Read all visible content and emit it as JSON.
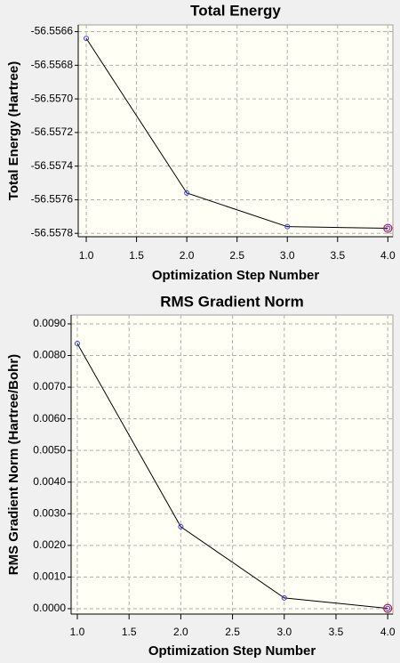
{
  "chart_data": [
    {
      "type": "line",
      "title": "Total Energy",
      "x_label": "Optimization Step Number",
      "y_label": "Total Energy (Hartree)",
      "x": [
        1,
        2,
        3,
        4
      ],
      "values": [
        -56.55664,
        -56.55756,
        -56.55776,
        -56.55777
      ],
      "color": "#000000",
      "marker_color": "#3a3ad0",
      "xlim": [
        0.92,
        4.05
      ],
      "ylim": [
        -56.55782,
        -56.55656
      ],
      "xticks": [
        {
          "value": 1,
          "label": "1.0"
        },
        1.5,
        {
          "value": 2,
          "label": "2.0"
        },
        2.5,
        {
          "value": 3,
          "label": "3.0"
        },
        3.5,
        {
          "value": 4,
          "label": "4.0"
        }
      ],
      "yticks": [
        -56.5566,
        -56.5568,
        {
          "value": -56.557,
          "label": "-56.5570"
        },
        -56.5572,
        -56.5574,
        -56.5576,
        -56.5578
      ],
      "grid": true
    },
    {
      "type": "line",
      "title": "RMS Gradient Norm",
      "x_label": "Optimization Step Number",
      "y_label": "RMS Gradient Norm (Hartree/Bohr)",
      "x": [
        1,
        2,
        3,
        4
      ],
      "values": [
        0.00838,
        0.00259,
        0.00034,
        1e-05
      ],
      "color": "#000000",
      "marker_color": "#3a3ad0",
      "xlim": [
        0.94,
        4.05
      ],
      "ylim": [
        -0.00017,
        0.00928
      ],
      "xticks": [
        {
          "value": 1,
          "label": "1.0"
        },
        1.5,
        {
          "value": 2,
          "label": "2.0"
        },
        2.5,
        {
          "value": 3,
          "label": "3.0"
        },
        3.5,
        {
          "value": 4,
          "label": "4.0"
        }
      ],
      "yticks": [
        {
          "value": 0,
          "label": "0.0000"
        },
        {
          "value": 0.001,
          "label": "0.0010"
        },
        {
          "value": 0.002,
          "label": "0.0020"
        },
        {
          "value": 0.003,
          "label": "0.0030"
        },
        {
          "value": 0.004,
          "label": "0.0040"
        },
        {
          "value": 0.005,
          "label": "0.0050"
        },
        {
          "value": 0.006,
          "label": "0.0060"
        },
        {
          "value": 0.007,
          "label": "0.0070"
        },
        {
          "value": 0.008,
          "label": "0.0080"
        },
        {
          "value": 0.009,
          "label": "0.0090"
        }
      ],
      "grid": true
    }
  ]
}
